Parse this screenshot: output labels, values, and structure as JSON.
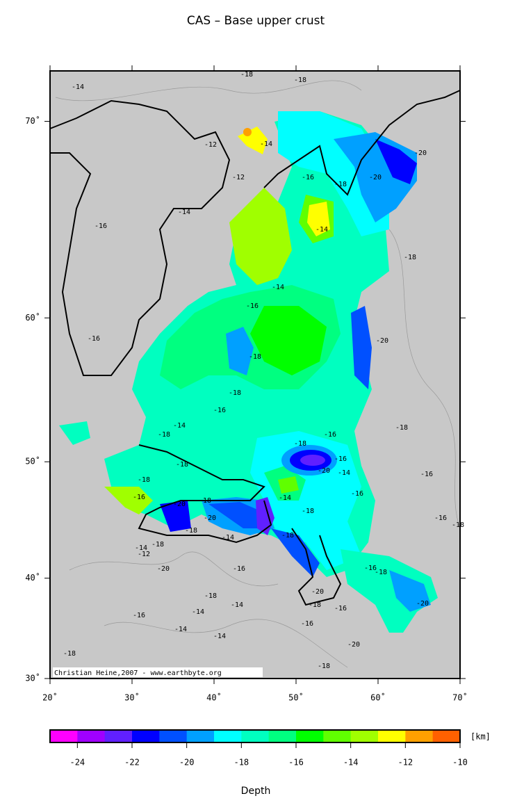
{
  "chart_data": {
    "type": "map",
    "title": "CAS – Base upper crust",
    "projection": "mercator",
    "xlim": [
      20,
      70
    ],
    "ylim": [
      30,
      72
    ],
    "xticks": [
      {
        "value": 20,
        "label": "20˚"
      },
      {
        "value": 30,
        "label": "30˚"
      },
      {
        "value": 40,
        "label": "40˚"
      },
      {
        "value": 50,
        "label": "50˚"
      },
      {
        "value": 60,
        "label": "60˚"
      },
      {
        "value": 70,
        "label": "70˚"
      }
    ],
    "yticks": [
      {
        "value": 30,
        "label": "30˚"
      },
      {
        "value": 40,
        "label": "40˚"
      },
      {
        "value": 50,
        "label": "50˚"
      },
      {
        "value": 60,
        "label": "60˚"
      },
      {
        "value": 70,
        "label": "70˚"
      }
    ],
    "contour_labels": [
      -14,
      -18,
      -18,
      -12,
      -12,
      -14,
      -16,
      -18,
      -20,
      -20,
      -14,
      -16,
      -14,
      -18,
      -14,
      -16,
      -16,
      -18,
      -20,
      -18,
      -16,
      -18,
      -14,
      -18,
      -16,
      -16,
      -18,
      -14,
      -20,
      -16,
      -14,
      -18,
      -18,
      -16,
      -20,
      -18,
      -20,
      -18,
      -14,
      -18,
      -12,
      -14,
      -20,
      -16,
      -18,
      -16,
      -18,
      -16,
      -18,
      -16,
      -18,
      -20,
      -18,
      -16,
      -20,
      -16,
      -20,
      -18,
      -16,
      -14,
      -14,
      -18,
      -14,
      -14,
      -18
    ],
    "credit": "Christian Heine,2007 - www.earthbyte.org",
    "colorbar": {
      "lim": [
        -25,
        -10
      ],
      "colors": [
        "#ff00ff",
        "#a000ff",
        "#6020ff",
        "#0000ff",
        "#0050ff",
        "#00a0ff",
        "#00ffff",
        "#00ffc0",
        "#00ff80",
        "#00ff00",
        "#60ff00",
        "#a0ff00",
        "#ffff00",
        "#ffa000",
        "#ff6000"
      ],
      "ticks": [
        -24,
        -22,
        -20,
        -18,
        -16,
        -14,
        -12,
        -10
      ],
      "unit": "[km]",
      "label": "Depth"
    }
  }
}
